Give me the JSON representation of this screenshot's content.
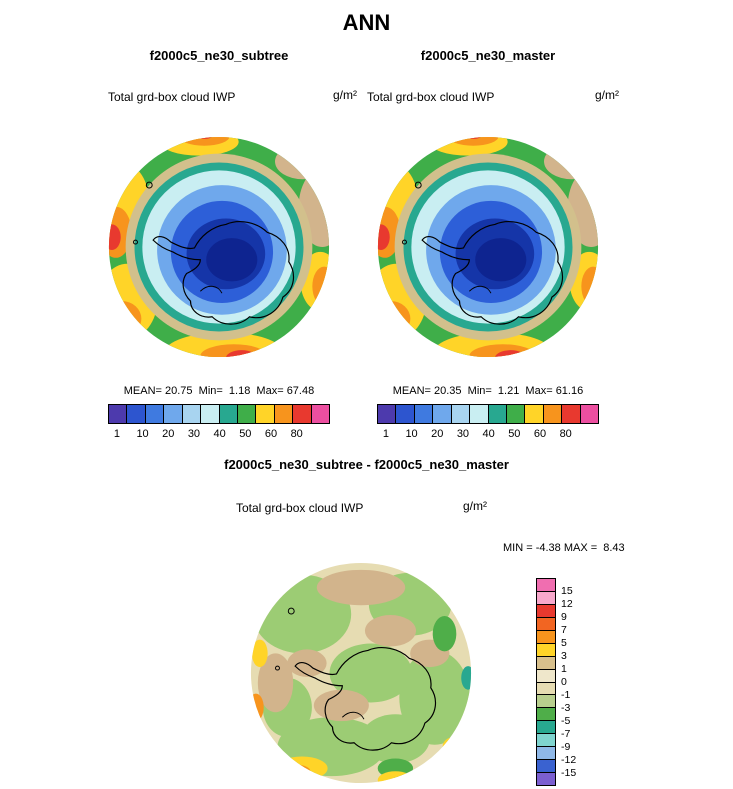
{
  "header": {
    "season": "ANN"
  },
  "chart_data": [
    {
      "type": "heatmap",
      "subtype": "filled-contour-map",
      "projection": "south-polar-stereographic",
      "region": "Antarctica",
      "title": "f2000c5_ne30_subtree",
      "field": "Total grd-box cloud IWP",
      "units": "g/m²",
      "stats": {
        "mean": 20.75,
        "min": 1.18,
        "max": 67.48
      },
      "stats_text": "MEAN= 20.75  Min=  1.18  Max= 67.48",
      "colorbar": {
        "orientation": "horizontal",
        "tick_labels": [
          "1",
          "10",
          "20",
          "30",
          "40",
          "50",
          "60",
          "80"
        ],
        "colors": [
          "#4d3aad",
          "#2d55cf",
          "#3f7ae0",
          "#6fa8ec",
          "#a8d4f0",
          "#c9eef2",
          "#28a890",
          "#3fae49",
          "#ffd428",
          "#f7941d",
          "#e8392f",
          "#ec4fa0"
        ]
      }
    },
    {
      "type": "heatmap",
      "subtype": "filled-contour-map",
      "projection": "south-polar-stereographic",
      "region": "Antarctica",
      "title": "f2000c5_ne30_master",
      "field": "Total grd-box cloud IWP",
      "units": "g/m²",
      "stats": {
        "mean": 20.35,
        "min": 1.21,
        "max": 61.16
      },
      "stats_text": "MEAN= 20.35  Min=  1.21  Max= 61.16",
      "colorbar": {
        "orientation": "horizontal",
        "tick_labels": [
          "1",
          "10",
          "20",
          "30",
          "40",
          "50",
          "60",
          "80"
        ],
        "colors": [
          "#4d3aad",
          "#2d55cf",
          "#3f7ae0",
          "#6fa8ec",
          "#a8d4f0",
          "#c9eef2",
          "#28a890",
          "#3fae49",
          "#ffd428",
          "#f7941d",
          "#e8392f",
          "#ec4fa0"
        ]
      }
    },
    {
      "type": "heatmap",
      "subtype": "filled-contour-difference-map",
      "projection": "south-polar-stereographic",
      "region": "Antarctica",
      "title": "f2000c5_ne30_subtree - f2000c5_ne30_master",
      "field": "Total grd-box cloud IWP",
      "units": "g/m²",
      "stats": {
        "min": -4.38,
        "max": 8.43
      },
      "stats_text": "MIN = -4.38 MAX =  8.43",
      "colorbar": {
        "orientation": "vertical",
        "tick_labels": [
          "15",
          "12",
          "9",
          "7",
          "5",
          "3",
          "1",
          "0",
          "-1",
          "-3",
          "-5",
          "-7",
          "-9",
          "-12",
          "-15"
        ],
        "colors": [
          "#f06eb0",
          "#f8a8cc",
          "#e8392f",
          "#f26522",
          "#f7941d",
          "#ffd428",
          "#d8c08c",
          "#efe7cb",
          "#e6dcb2",
          "#b8cf8e",
          "#4fae49",
          "#28a890",
          "#7fd4cf",
          "#8fb8e8",
          "#3a62d0",
          "#7b5fd0"
        ]
      }
    }
  ]
}
